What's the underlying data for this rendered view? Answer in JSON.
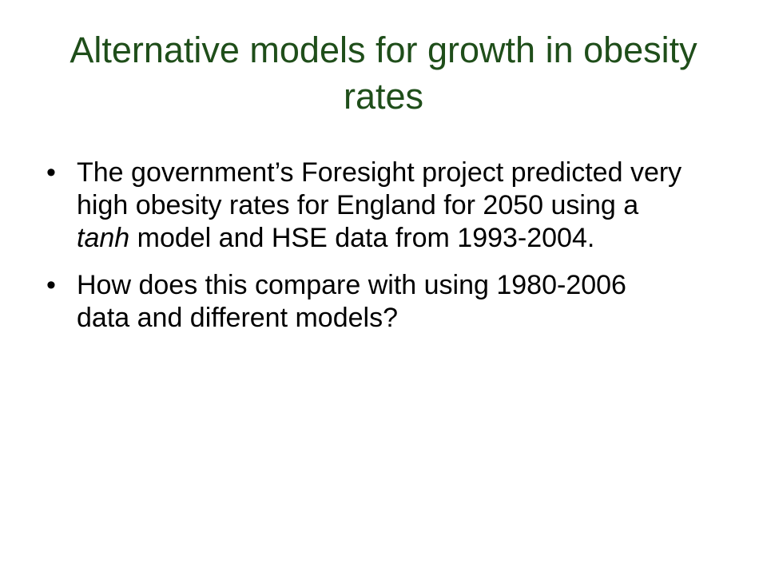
{
  "slide": {
    "title": "Alternative models for growth in obesity rates",
    "bullets": [
      {
        "marker": "•",
        "parts": [
          {
            "text": "The government’s Foresight project predicted very high obesity rates for England for 2050 using a ",
            "style": "normal"
          },
          {
            "text": "tanh",
            "style": "italic"
          },
          {
            "text": " model and HSE data from 1993-2004.",
            "style": "normal"
          }
        ]
      },
      {
        "marker": "•",
        "parts": [
          {
            "text": "How does this compare with using 1980-2006 data and different models?",
            "style": "normal"
          }
        ]
      }
    ]
  }
}
